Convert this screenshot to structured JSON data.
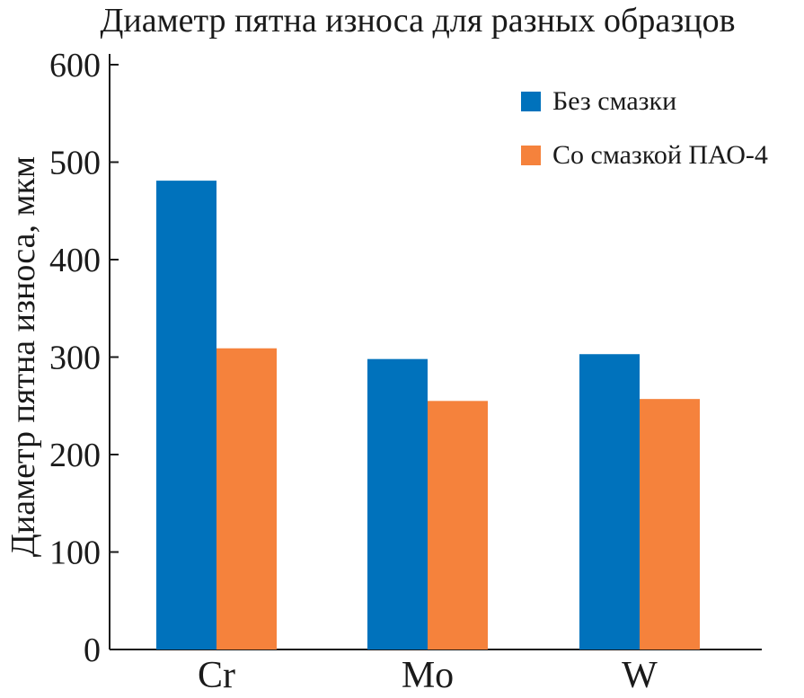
{
  "chart_data": {
    "type": "bar",
    "title": "Диаметр пятна износа для разных образцов",
    "xlabel": "",
    "ylabel": "Диаметр пятна износа, мкм",
    "categories": [
      "Cr",
      "Mo",
      "W"
    ],
    "series": [
      {
        "name": "Без смазки",
        "color": "#0072bc",
        "values": [
          481,
          298,
          303
        ]
      },
      {
        "name": "Со смазкой ПАО-4",
        "color": "#f5823c",
        "values": [
          309,
          255,
          257
        ]
      }
    ],
    "ylim": [
      0,
      600
    ],
    "yticks": [
      0,
      100,
      200,
      300,
      400,
      500,
      600
    ],
    "grid": false,
    "legend_position": "top-right"
  }
}
